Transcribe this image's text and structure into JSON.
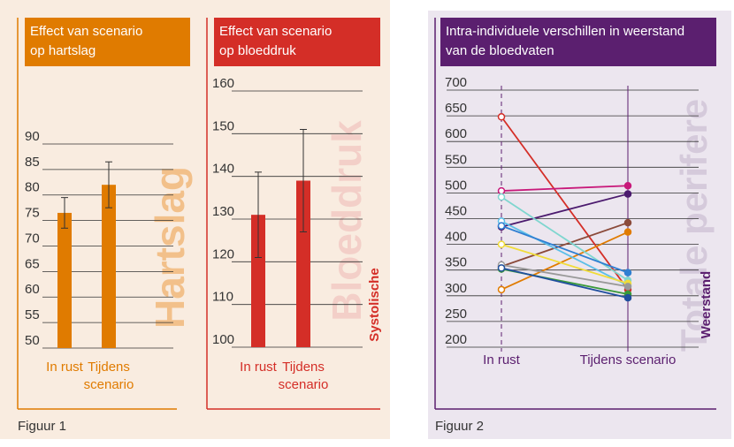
{
  "captions": [
    "Figuur 1",
    "Figuur 2"
  ],
  "chart_data": [
    {
      "type": "bar",
      "title": [
        "Effect van scenario",
        "op hartslag"
      ],
      "y_label": "Hartslag",
      "color": "#e07b00",
      "categories": [
        "In rust",
        "Tijdens scenario"
      ],
      "values": [
        76.5,
        82
      ],
      "errors": [
        3,
        4.5
      ],
      "ylim": [
        50,
        90
      ],
      "yticks": [
        50,
        55,
        60,
        65,
        70,
        75,
        80,
        85,
        90
      ],
      "grid": true
    },
    {
      "type": "bar",
      "title": [
        "Effect van scenario",
        "op bloeddruk"
      ],
      "y_label": "Bloeddruk",
      "y_sublabel": "Systolische",
      "color": "#d42e27",
      "categories": [
        "In rust",
        "Tijdens scenario"
      ],
      "values": [
        131,
        139
      ],
      "errors": [
        10,
        12
      ],
      "ylim": [
        100,
        160
      ],
      "yticks": [
        100,
        110,
        120,
        130,
        140,
        150,
        160
      ],
      "grid": true
    },
    {
      "type": "line",
      "title": [
        "Intra-individuele verschillen in weerstand",
        "van de bloedvaten"
      ],
      "y_label": "Totale perifere",
      "y_sublabel": "Weerstand",
      "color": "#5b1f6f",
      "categories": [
        "In rust",
        "Tijdens scenario"
      ],
      "series": [
        {
          "color": "#d42e27",
          "values": [
            648,
            312
          ]
        },
        {
          "color": "#c8197a",
          "values": [
            504,
            514
          ]
        },
        {
          "color": "#4b1a6e",
          "values": [
            434,
            498
          ]
        },
        {
          "color": "#8b4a3a",
          "values": [
            357,
            442
          ]
        },
        {
          "color": "#e07b00",
          "values": [
            312,
            424
          ]
        },
        {
          "color": "#7fd6cf",
          "values": [
            492,
            330
          ]
        },
        {
          "color": "#5bbfe8",
          "values": [
            445,
            320
          ]
        },
        {
          "color": "#2f7fd2",
          "values": [
            436,
            345
          ]
        },
        {
          "color": "#f0dc3a",
          "values": [
            400,
            324
          ]
        },
        {
          "color": "#999999",
          "values": [
            360,
            318
          ]
        },
        {
          "color": "#3a9a3a",
          "values": [
            352,
            303
          ]
        },
        {
          "color": "#1f4f9e",
          "values": [
            354,
            296
          ]
        }
      ],
      "ylim": [
        200,
        700
      ],
      "yticks": [
        200,
        250,
        300,
        350,
        400,
        450,
        500,
        550,
        600,
        650,
        700
      ],
      "grid": true
    }
  ]
}
